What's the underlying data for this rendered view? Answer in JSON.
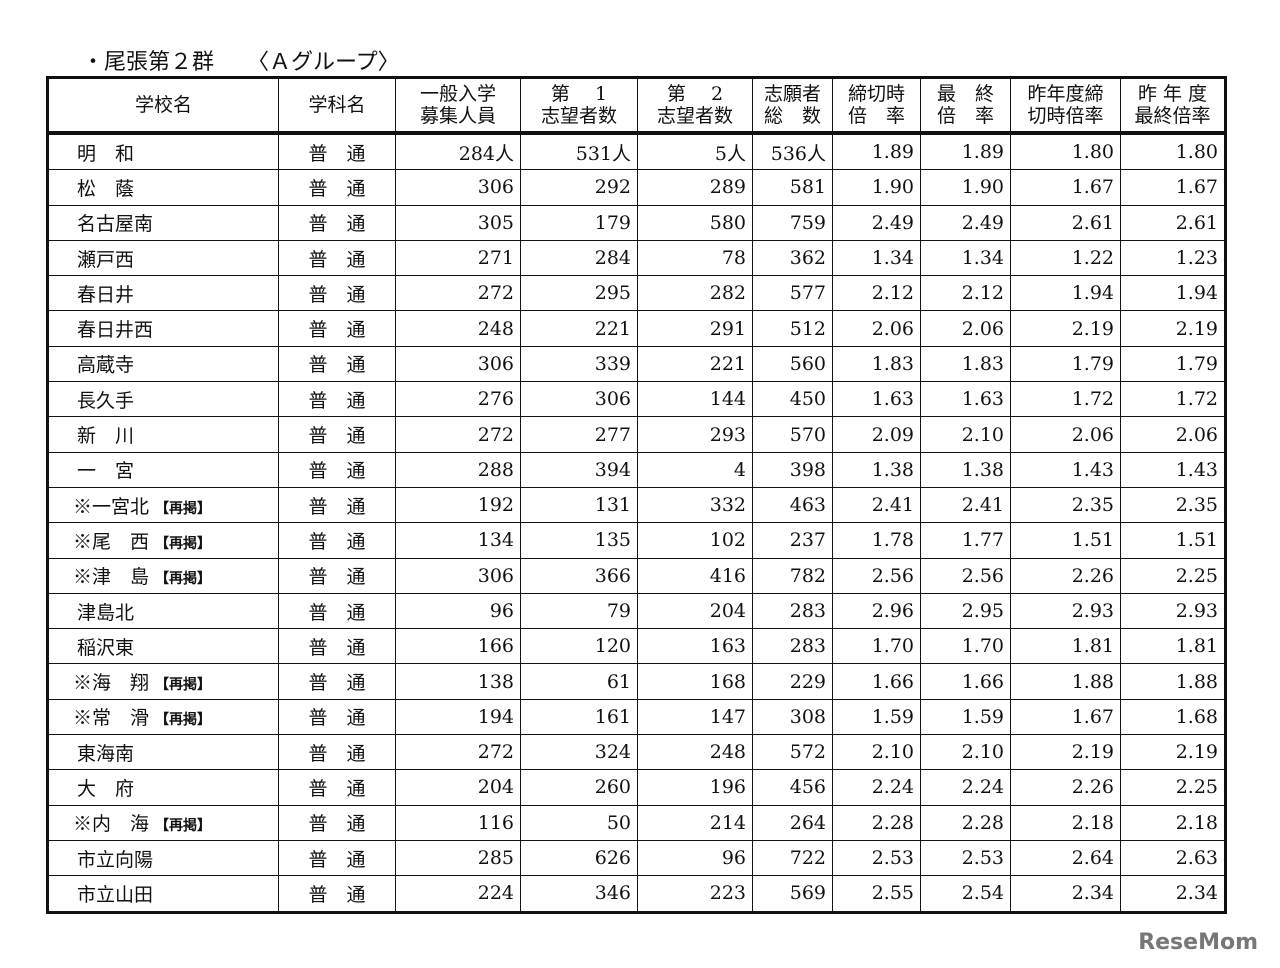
{
  "title": "・尾張第２群　　〈Ａグループ〉",
  "headers": [
    "学校名",
    "学科名",
    "一般入学\n募集人員",
    "第　 1\n志望者数",
    "第　 2\n志望者数",
    "志願者\n総　数",
    "締切時\n倍　率",
    "最　終\n倍　率",
    "昨年度締\n切時倍率",
    "昨 年 度\n最終倍率"
  ],
  "rows": [
    [
      "明　和",
      "",
      "普　通",
      "284人",
      "531人",
      "5人",
      "536人",
      "1.89",
      "1.89",
      "1.80",
      "1.80"
    ],
    [
      "松　蔭",
      "",
      "普　通",
      "306",
      "292",
      "289",
      "581",
      "1.90",
      "1.90",
      "1.67",
      "1.67"
    ],
    [
      "名古屋南",
      "",
      "普　通",
      "305",
      "179",
      "580",
      "759",
      "2.49",
      "2.49",
      "2.61",
      "2.61"
    ],
    [
      "瀬戸西",
      "",
      "普　通",
      "271",
      "284",
      "78",
      "362",
      "1.34",
      "1.34",
      "1.22",
      "1.23"
    ],
    [
      "春日井",
      "",
      "普　通",
      "272",
      "295",
      "282",
      "577",
      "2.12",
      "2.12",
      "1.94",
      "1.94"
    ],
    [
      "春日井西",
      "",
      "普　通",
      "248",
      "221",
      "291",
      "512",
      "2.06",
      "2.06",
      "2.19",
      "2.19"
    ],
    [
      "高蔵寺",
      "",
      "普　通",
      "306",
      "339",
      "221",
      "560",
      "1.83",
      "1.83",
      "1.79",
      "1.79"
    ],
    [
      "長久手",
      "",
      "普　通",
      "276",
      "306",
      "144",
      "450",
      "1.63",
      "1.63",
      "1.72",
      "1.72"
    ],
    [
      "新　川",
      "",
      "普　通",
      "272",
      "277",
      "293",
      "570",
      "2.09",
      "2.10",
      "2.06",
      "2.06"
    ],
    [
      "一　宮",
      "",
      "普　通",
      "288",
      "394",
      "4",
      "398",
      "1.38",
      "1.38",
      "1.43",
      "1.43"
    ],
    [
      "※一宮北",
      "【再掲】",
      "普　通",
      "192",
      "131",
      "332",
      "463",
      "2.41",
      "2.41",
      "2.35",
      "2.35"
    ],
    [
      "※尾　西",
      "【再掲】",
      "普　通",
      "134",
      "135",
      "102",
      "237",
      "1.78",
      "1.77",
      "1.51",
      "1.51"
    ],
    [
      "※津　島",
      "【再掲】",
      "普　通",
      "306",
      "366",
      "416",
      "782",
      "2.56",
      "2.56",
      "2.26",
      "2.25"
    ],
    [
      "津島北",
      "",
      "普　通",
      "96",
      "79",
      "204",
      "283",
      "2.96",
      "2.95",
      "2.93",
      "2.93"
    ],
    [
      "稲沢東",
      "",
      "普　通",
      "166",
      "120",
      "163",
      "283",
      "1.70",
      "1.70",
      "1.81",
      "1.81"
    ],
    [
      "※海　翔",
      "【再掲】",
      "普　通",
      "138",
      "61",
      "168",
      "229",
      "1.66",
      "1.66",
      "1.88",
      "1.88"
    ],
    [
      "※常　滑",
      "【再掲】",
      "普　通",
      "194",
      "161",
      "147",
      "308",
      "1.59",
      "1.59",
      "1.67",
      "1.68"
    ],
    [
      "東海南",
      "",
      "普　通",
      "272",
      "324",
      "248",
      "572",
      "2.10",
      "2.10",
      "2.19",
      "2.19"
    ],
    [
      "大　府",
      "",
      "普　通",
      "204",
      "260",
      "196",
      "456",
      "2.24",
      "2.24",
      "2.26",
      "2.25"
    ],
    [
      "※内　海",
      "【再掲】",
      "普　通",
      "116",
      "50",
      "214",
      "264",
      "2.28",
      "2.28",
      "2.18",
      "2.18"
    ],
    [
      "市立向陽",
      "",
      "普　通",
      "285",
      "626",
      "96",
      "722",
      "2.53",
      "2.53",
      "2.64",
      "2.63"
    ],
    [
      "市立山田",
      "",
      "普　通",
      "224",
      "346",
      "223",
      "569",
      "2.55",
      "2.54",
      "2.34",
      "2.34"
    ]
  ],
  "logo": "ReseMom"
}
